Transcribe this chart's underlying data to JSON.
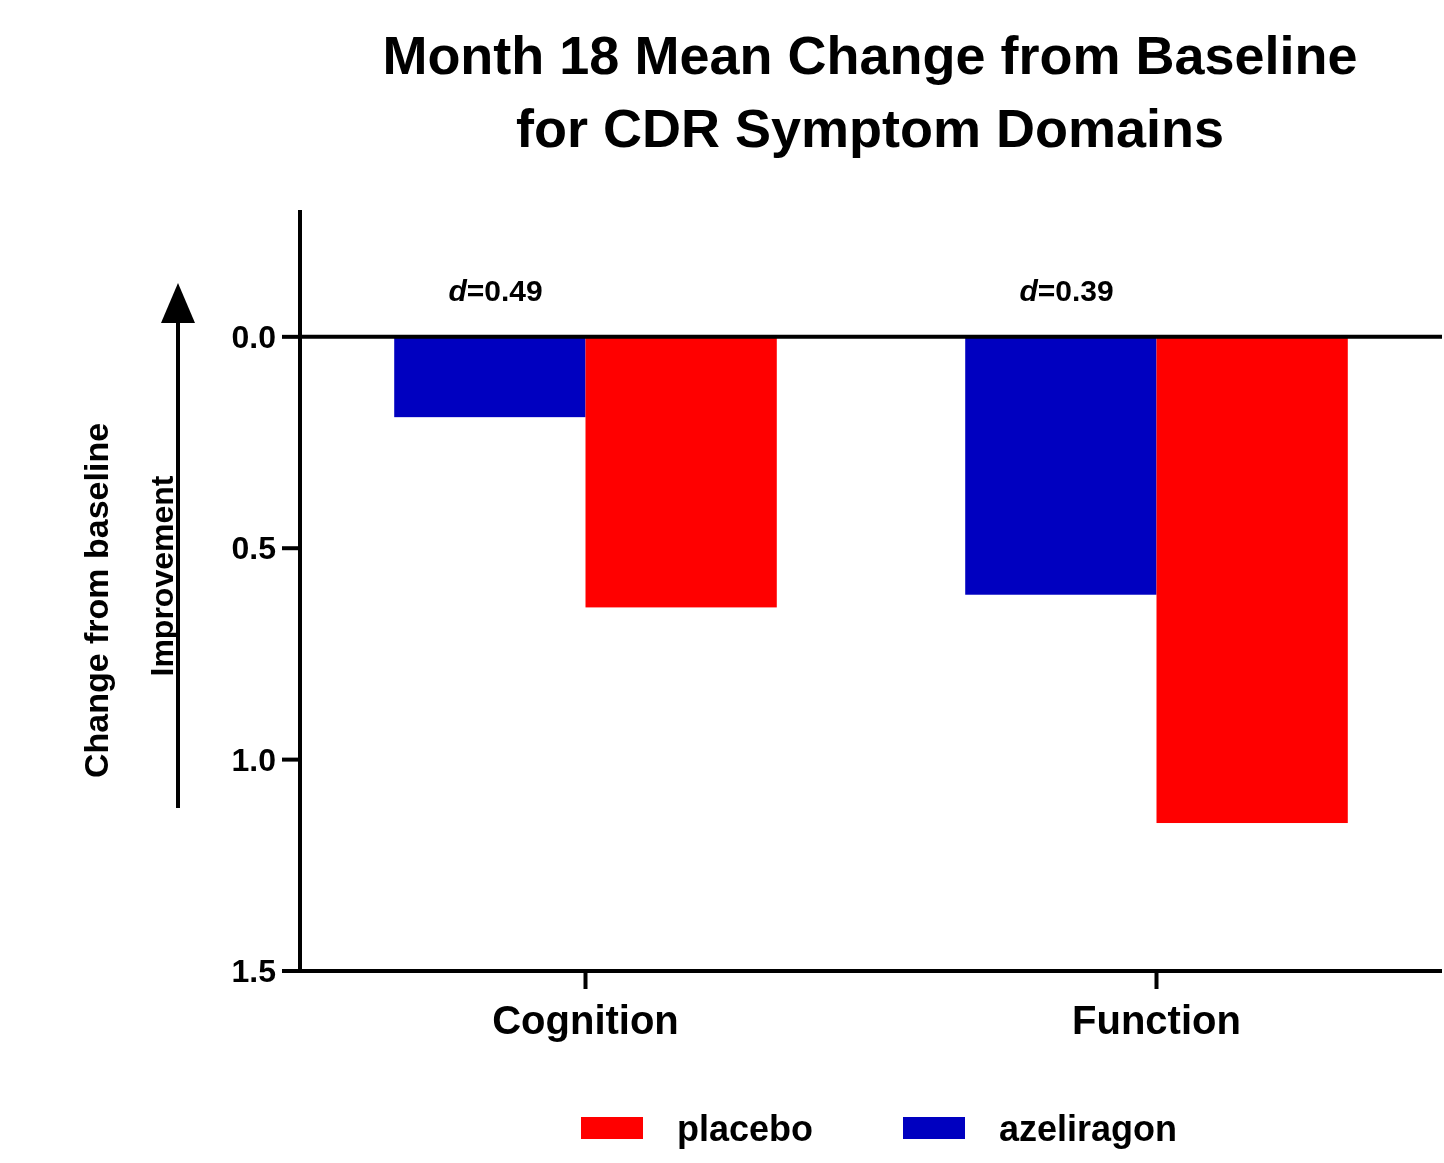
{
  "chart_data": {
    "type": "bar",
    "title": "Month 18 Mean Change from Baseline\nfor CDR Symptom Domains",
    "ylabel": "Change from baseline",
    "categories": [
      "Cognition",
      "Function"
    ],
    "series": [
      {
        "name": "azeliragon",
        "color": "#0000c0",
        "values": [
          0.19,
          0.61
        ]
      },
      {
        "name": "placebo",
        "color": "#ff0000",
        "values": [
          0.64,
          1.15
        ]
      }
    ],
    "ylim": [
      1.5,
      -0.3
    ],
    "yticks": [
      {
        "value": 0,
        "label": "0.0"
      },
      0.5,
      {
        "value": 1,
        "label": "1.0"
      },
      1.5
    ],
    "ref_lines": [
      {
        "axis": "y",
        "value": 0
      }
    ],
    "annotations": [
      "d=0.49",
      "d=0.39",
      "Improvement"
    ],
    "legend": "bottom",
    "grid": false
  }
}
